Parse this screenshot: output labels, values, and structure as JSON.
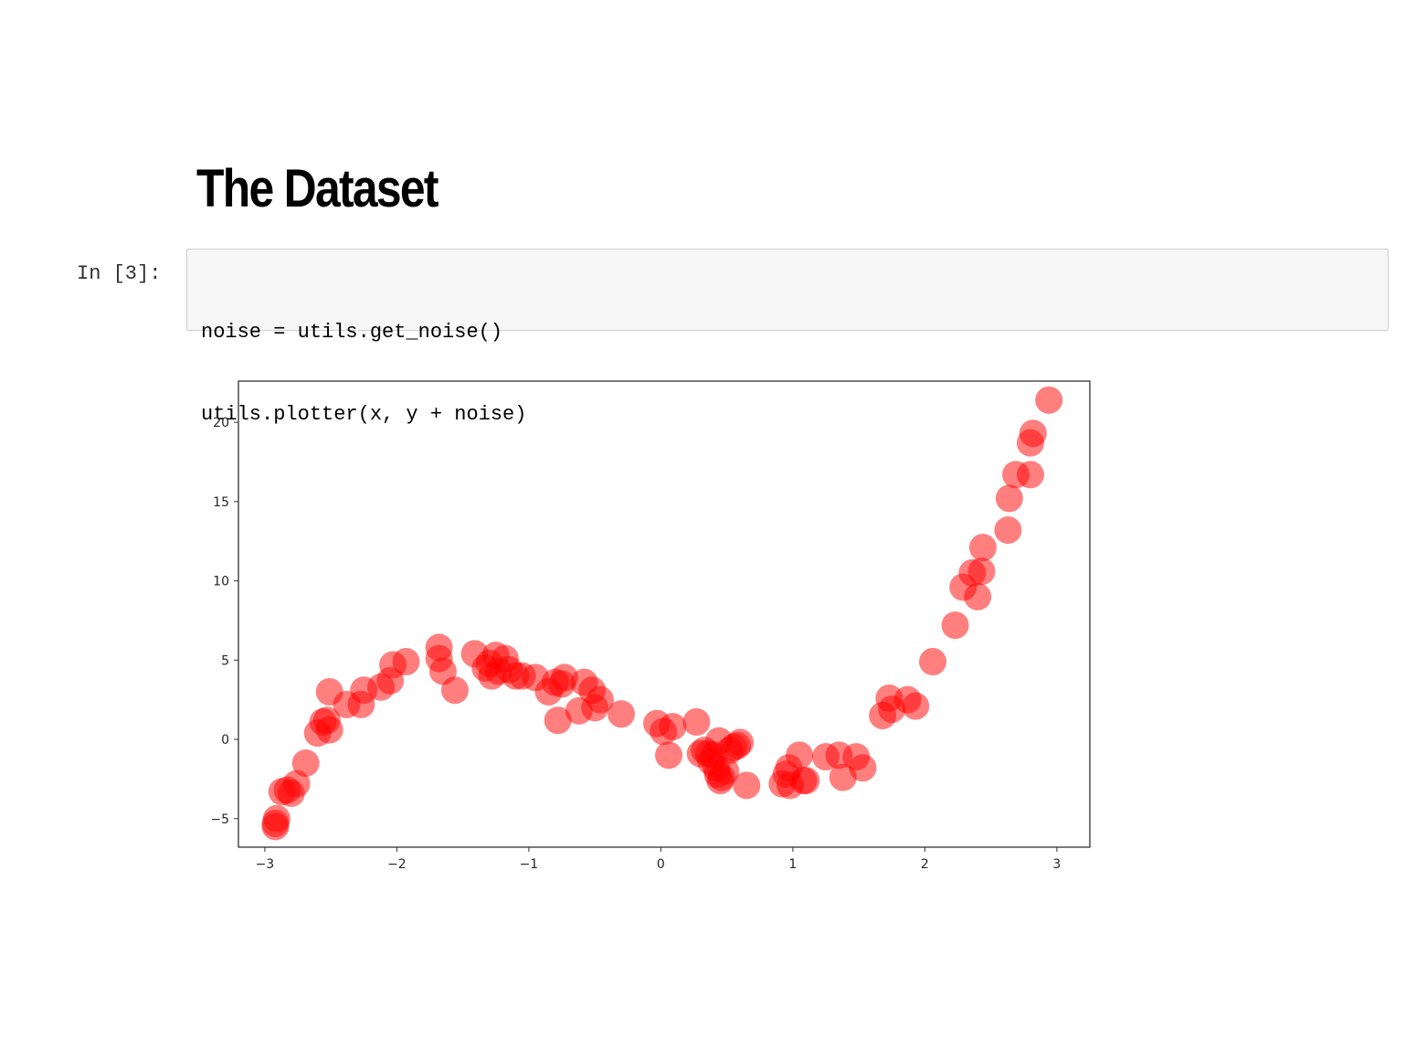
{
  "markdown": {
    "heading": "The Dataset"
  },
  "cell": {
    "prompt": "In [3]:",
    "code_lines": [
      "noise = utils.get_noise()",
      "utils.plotter(x, y + noise)"
    ]
  },
  "chart_data": {
    "type": "scatter",
    "marker_color": "#ff0000",
    "marker_alpha": 0.5,
    "xlim": [
      -3.2,
      3.25
    ],
    "ylim": [
      -6.8,
      22.6
    ],
    "xticks": [
      -3,
      -2,
      -1,
      0,
      1,
      2,
      3
    ],
    "yticks": [
      -5,
      0,
      5,
      10,
      15,
      20
    ],
    "xtick_labels": [
      "−3",
      "−2",
      "−1",
      "0",
      "1",
      "2",
      "3"
    ],
    "ytick_labels": [
      "−5",
      "0",
      "5",
      "10",
      "15",
      "20"
    ],
    "grid": false,
    "points": [
      [
        -2.92,
        -5.3
      ],
      [
        -2.92,
        -5.5
      ],
      [
        -2.91,
        -5.0
      ],
      [
        -2.87,
        -3.3
      ],
      [
        -2.83,
        -3.2
      ],
      [
        -2.8,
        -3.4
      ],
      [
        -2.76,
        -2.8
      ],
      [
        -2.69,
        -1.5
      ],
      [
        -2.6,
        0.4
      ],
      [
        -2.56,
        1.1
      ],
      [
        -2.53,
        1.2
      ],
      [
        -2.51,
        0.6
      ],
      [
        -2.51,
        3.0
      ],
      [
        -2.38,
        2.2
      ],
      [
        -2.27,
        2.2
      ],
      [
        -2.25,
        3.1
      ],
      [
        -2.12,
        3.3
      ],
      [
        -2.05,
        3.7
      ],
      [
        -2.03,
        4.7
      ],
      [
        -1.93,
        4.9
      ],
      [
        -1.68,
        5.8
      ],
      [
        -1.68,
        5.1
      ],
      [
        -1.65,
        4.3
      ],
      [
        -1.56,
        3.1
      ],
      [
        -1.41,
        5.4
      ],
      [
        -1.33,
        4.5
      ],
      [
        -1.3,
        4.8
      ],
      [
        -1.28,
        4.0
      ],
      [
        -1.25,
        5.3
      ],
      [
        -1.23,
        4.3
      ],
      [
        -1.18,
        5.1
      ],
      [
        -1.15,
        4.4
      ],
      [
        -1.1,
        4.0
      ],
      [
        -1.05,
        4.0
      ],
      [
        -0.95,
        3.9
      ],
      [
        -0.85,
        3.0
      ],
      [
        -0.8,
        3.6
      ],
      [
        -0.78,
        1.2
      ],
      [
        -0.75,
        3.5
      ],
      [
        -0.73,
        3.9
      ],
      [
        -0.62,
        1.8
      ],
      [
        -0.58,
        3.6
      ],
      [
        -0.52,
        3.1
      ],
      [
        -0.5,
        2.0
      ],
      [
        -0.46,
        2.5
      ],
      [
        -0.3,
        1.6
      ],
      [
        -0.03,
        1.0
      ],
      [
        0.02,
        0.5
      ],
      [
        0.06,
        -1.0
      ],
      [
        0.09,
        0.8
      ],
      [
        0.27,
        1.1
      ],
      [
        0.3,
        -0.9
      ],
      [
        0.33,
        -0.7
      ],
      [
        0.36,
        -0.9
      ],
      [
        0.38,
        -1.4
      ],
      [
        0.4,
        -1.0
      ],
      [
        0.42,
        -1.8
      ],
      [
        0.43,
        -2.2
      ],
      [
        0.44,
        -0.1
      ],
      [
        0.45,
        -2.6
      ],
      [
        0.46,
        -2.4
      ],
      [
        0.49,
        -2.0
      ],
      [
        0.52,
        -0.7
      ],
      [
        0.55,
        -0.5
      ],
      [
        0.58,
        -0.4
      ],
      [
        0.6,
        -0.2
      ],
      [
        0.65,
        -2.9
      ],
      [
        0.92,
        -2.8
      ],
      [
        0.95,
        -2.2
      ],
      [
        0.97,
        -1.8
      ],
      [
        0.98,
        -2.9
      ],
      [
        1.05,
        -1.0
      ],
      [
        1.08,
        -2.6
      ],
      [
        1.1,
        -2.6
      ],
      [
        1.25,
        -1.1
      ],
      [
        1.35,
        -1.0
      ],
      [
        1.38,
        -2.4
      ],
      [
        1.48,
        -1.1
      ],
      [
        1.53,
        -1.8
      ],
      [
        1.68,
        1.5
      ],
      [
        1.73,
        2.6
      ],
      [
        1.75,
        1.9
      ],
      [
        1.87,
        2.5
      ],
      [
        1.93,
        2.1
      ],
      [
        2.06,
        4.9
      ],
      [
        2.23,
        7.2
      ],
      [
        2.29,
        9.6
      ],
      [
        2.36,
        10.5
      ],
      [
        2.4,
        9.0
      ],
      [
        2.43,
        10.6
      ],
      [
        2.44,
        12.1
      ],
      [
        2.63,
        13.2
      ],
      [
        2.64,
        15.2
      ],
      [
        2.69,
        16.7
      ],
      [
        2.8,
        18.7
      ],
      [
        2.8,
        16.7
      ],
      [
        2.82,
        19.3
      ],
      [
        2.94,
        21.4
      ]
    ]
  }
}
